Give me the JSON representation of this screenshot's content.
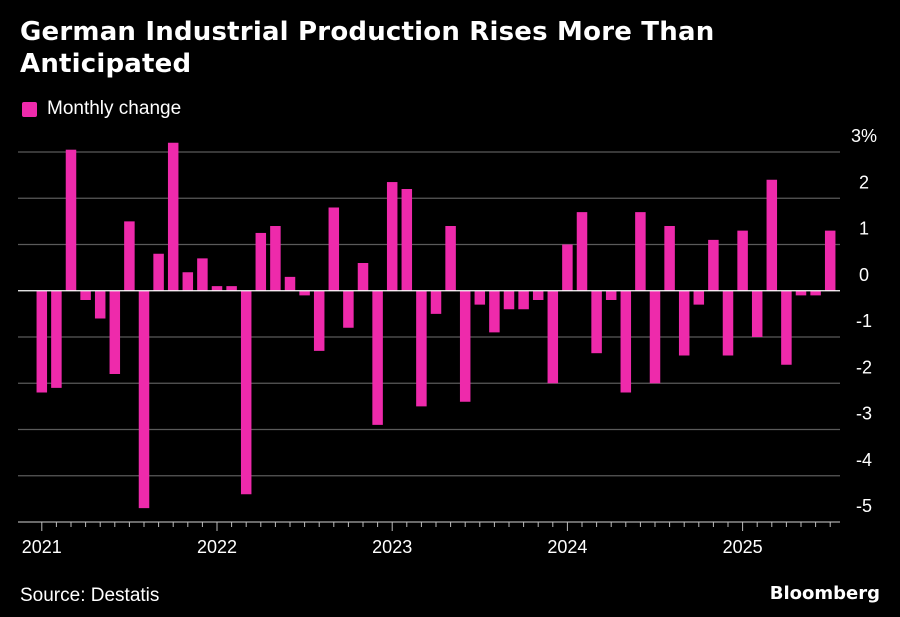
{
  "title": "German Industrial Production Rises More Than Anticipated",
  "legend": {
    "label": "Monthly change"
  },
  "source": "Source: Destatis",
  "brand": "Bloomberg",
  "colors": {
    "bar": "#ee2aab",
    "grid": "#5a5a5a",
    "zero": "#ffffff",
    "text": "#ffffff",
    "background": "#000000"
  },
  "chart_data": {
    "type": "bar",
    "x_start": "2021-01",
    "x_end": "2025-07",
    "xlabel": "",
    "ylabel": "",
    "ylim": [
      -5,
      3
    ],
    "y_ticks": [
      3,
      2,
      1,
      0,
      -1,
      -2,
      -3,
      -4,
      -5
    ],
    "y_tick_labels": [
      "3%",
      "2",
      "1",
      "0",
      "-1",
      "-2",
      "-3",
      "-4",
      "-5"
    ],
    "x_tick_labels": [
      "2021",
      "2022",
      "2023",
      "2024",
      "2025"
    ],
    "grid": true,
    "legend_position": "top-left",
    "series": [
      {
        "name": "Monthly change",
        "values": [
          -2.2,
          -2.1,
          3.05,
          -0.2,
          -0.6,
          -1.8,
          1.5,
          -4.7,
          0.8,
          3.2,
          0.4,
          0.7,
          0.1,
          0.1,
          -4.4,
          1.25,
          1.4,
          0.3,
          -0.1,
          -1.3,
          1.8,
          -0.8,
          0.6,
          -2.9,
          2.35,
          2.2,
          -2.5,
          -0.5,
          1.4,
          -2.4,
          -0.3,
          -0.9,
          -0.4,
          -0.4,
          -0.2,
          -2.0,
          1.0,
          1.7,
          -1.35,
          -0.2,
          -2.2,
          1.7,
          -2.0,
          1.4,
          -1.4,
          -0.3,
          1.1,
          -1.4,
          1.3,
          -1.0,
          2.4,
          -1.6,
          -0.1,
          -0.1,
          1.3
        ]
      }
    ]
  }
}
